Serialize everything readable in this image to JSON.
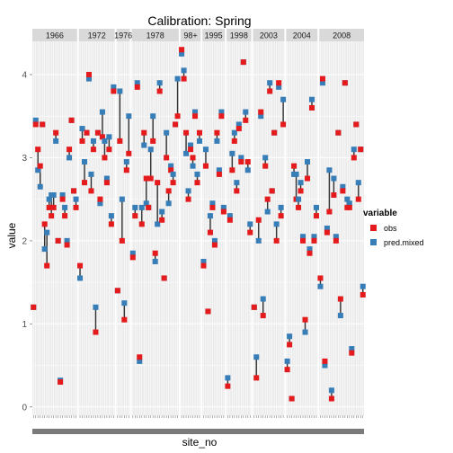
{
  "chart_data": {
    "type": "scatter",
    "title": "Calibration: Spring",
    "xlabel": "site_no",
    "ylabel": "value",
    "ylim": [
      -0.1,
      4.4
    ],
    "yticks": [
      "0",
      "1",
      "2",
      "3",
      "4"
    ],
    "ytick_values": [
      0,
      1,
      2,
      3,
      4
    ],
    "facet_variable": "year",
    "legend": {
      "title": "variable",
      "position": "right",
      "entries": [
        {
          "name": "obs",
          "color": "#e41a1c"
        },
        {
          "name": "pred.mixed",
          "color": "#377eb8"
        }
      ]
    },
    "panels": [
      {
        "label": "1966",
        "points": [
          [
            1.2,
            1.2
          ],
          [
            3.4,
            3.45
          ],
          [
            3.1,
            2.85
          ],
          [
            2.9,
            2.65
          ],
          [
            3.4,
            3.4
          ],
          [
            2.2,
            1.9
          ],
          [
            1.7,
            2.1
          ],
          [
            2.4,
            2.5
          ],
          [
            2.3,
            2.55
          ],
          [
            2.4,
            2.55
          ],
          [
            3.3,
            3.2
          ],
          [
            2.0,
            2.0
          ],
          [
            0.3,
            0.32
          ],
          [
            2.5,
            2.55
          ],
          [
            2.3,
            2.4
          ],
          [
            1.95,
            2.0
          ],
          [
            3.1,
            3.0
          ],
          [
            3.45,
            3.45
          ],
          [
            2.6,
            2.6
          ],
          [
            2.4,
            2.5
          ]
        ]
      },
      {
        "label": "1972",
        "points": [
          [
            1.7,
            1.55
          ],
          [
            3.2,
            3.35
          ],
          [
            2.7,
            2.95
          ],
          [
            3.3,
            3.3
          ],
          [
            4.0,
            3.95
          ],
          [
            2.6,
            2.8
          ],
          [
            3.1,
            3.2
          ],
          [
            0.9,
            1.2
          ],
          [
            3.3,
            3.3
          ],
          [
            2.5,
            2.45
          ],
          [
            3.25,
            3.55
          ],
          [
            3.0,
            3.2
          ],
          [
            2.7,
            2.75
          ],
          [
            3.1,
            3.25
          ],
          [
            2.2,
            2.3
          ],
          [
            3.8,
            3.85
          ]
        ]
      },
      {
        "label": "1976",
        "points": [
          [
            1.4,
            1.4
          ],
          [
            3.2,
            3.8
          ],
          [
            2.0,
            2.5
          ],
          [
            1.05,
            1.25
          ],
          [
            2.85,
            2.95
          ],
          [
            3.05,
            3.5
          ]
        ]
      },
      {
        "label": "1978",
        "points": [
          [
            1.8,
            1.85
          ],
          [
            2.3,
            2.4
          ],
          [
            3.85,
            3.9
          ],
          [
            0.6,
            0.55
          ],
          [
            2.2,
            2.4
          ],
          [
            3.3,
            3.15
          ],
          [
            2.75,
            2.45
          ],
          [
            2.4,
            2.4
          ],
          [
            2.75,
            3.1
          ],
          [
            3.2,
            3.5
          ],
          [
            1.85,
            1.75
          ],
          [
            2.7,
            2.2
          ],
          [
            3.8,
            3.9
          ],
          [
            2.25,
            2.35
          ],
          [
            1.55,
            1.55
          ],
          [
            3.0,
            3.3
          ],
          [
            2.6,
            2.45
          ],
          [
            2.85,
            2.9
          ],
          [
            2.7,
            2.8
          ],
          [
            3.4,
            3.4
          ],
          [
            3.5,
            3.95
          ]
        ]
      },
      {
        "label": "98+",
        "points": [
          [
            4.3,
            4.25
          ],
          [
            3.95,
            4.05
          ],
          [
            3.3,
            3.05
          ],
          [
            2.5,
            2.6
          ],
          [
            3.1,
            3.15
          ],
          [
            3.0,
            2.9
          ],
          [
            3.5,
            3.55
          ],
          [
            2.7,
            2.8
          ],
          [
            3.3,
            3.2
          ]
        ]
      },
      {
        "label": "1995",
        "points": [
          [
            1.7,
            1.75
          ],
          [
            2.9,
            3.1
          ],
          [
            1.15,
            1.15
          ],
          [
            2.1,
            2.3
          ],
          [
            2.4,
            2.45
          ],
          [
            1.95,
            2.0
          ],
          [
            3.3,
            3.2
          ],
          [
            2.8,
            2.85
          ],
          [
            3.5,
            3.55
          ],
          [
            2.35,
            2.4
          ]
        ]
      },
      {
        "label": "1998",
        "points": [
          [
            0.25,
            0.35
          ],
          [
            2.25,
            2.3
          ],
          [
            2.85,
            3.05
          ],
          [
            3.2,
            3.3
          ],
          [
            2.6,
            2.7
          ],
          [
            3.35,
            3.4
          ],
          [
            2.95,
            3.0
          ],
          [
            4.15,
            4.15
          ],
          [
            3.45,
            3.55
          ],
          [
            2.95,
            2.85
          ],
          [
            2.1,
            2.2
          ]
        ]
      },
      {
        "label": "2003",
        "points": [
          [
            1.2,
            1.2
          ],
          [
            0.35,
            0.6
          ],
          [
            2.25,
            2.0
          ],
          [
            3.55,
            3.5
          ],
          [
            1.1,
            1.3
          ],
          [
            2.9,
            3.0
          ],
          [
            2.5,
            2.35
          ],
          [
            3.8,
            3.9
          ],
          [
            2.6,
            2.6
          ],
          [
            3.3,
            3.3
          ],
          [
            2.0,
            2.2
          ],
          [
            3.9,
            3.85
          ],
          [
            2.3,
            2.4
          ],
          [
            3.4,
            3.7
          ]
        ]
      },
      {
        "label": "2004",
        "points": [
          [
            0.45,
            0.55
          ],
          [
            0.75,
            0.85
          ],
          [
            0.1,
            0.1
          ],
          [
            2.9,
            2.8
          ],
          [
            2.5,
            2.8
          ],
          [
            2.4,
            2.5
          ],
          [
            2.6,
            2.7
          ],
          [
            2.0,
            2.05
          ],
          [
            1.05,
            0.9
          ],
          [
            2.75,
            2.95
          ],
          [
            1.85,
            1.9
          ],
          [
            3.6,
            3.7
          ],
          [
            2.0,
            2.05
          ],
          [
            2.3,
            2.4
          ]
        ]
      },
      {
        "label": "2008",
        "points": [
          [
            1.55,
            1.45
          ],
          [
            3.95,
            3.9
          ],
          [
            0.55,
            0.5
          ],
          [
            2.1,
            2.15
          ],
          [
            2.35,
            2.85
          ],
          [
            0.1,
            0.2
          ],
          [
            2.55,
            2.75
          ],
          [
            2.0,
            2.05
          ],
          [
            3.3,
            3.3
          ],
          [
            1.3,
            1.1
          ],
          [
            2.6,
            2.65
          ],
          [
            3.9,
            3.9
          ],
          [
            2.4,
            2.5
          ],
          [
            2.4,
            2.45
          ],
          [
            0.65,
            0.7
          ],
          [
            3.0,
            3.1
          ],
          [
            3.4,
            3.4
          ],
          [
            2.5,
            2.7
          ],
          [
            3.1,
            3.1
          ],
          [
            1.35,
            1.45
          ]
        ]
      }
    ]
  }
}
